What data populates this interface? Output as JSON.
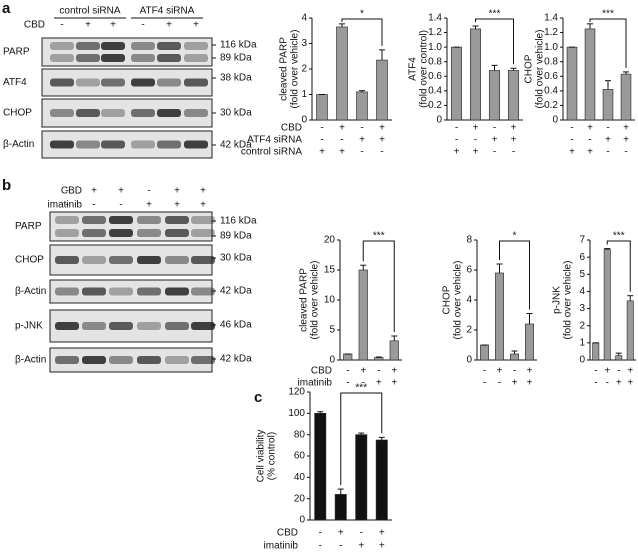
{
  "panel_labels": [
    "a",
    "b",
    "c"
  ],
  "blots": [
    {
      "groups": [
        "control siRNA",
        "ATF4 siRNA"
      ],
      "conditions": [
        {
          "name": "CBD",
          "signs": [
            "-",
            "+",
            "+",
            "-",
            "+",
            "+"
          ]
        }
      ],
      "rows": [
        {
          "name": "PARP",
          "markers": [
            "116 kDa",
            "89 kDa"
          ]
        },
        {
          "name": "ATF4",
          "markers": [
            "38 kDa"
          ]
        },
        {
          "name": "CHOP",
          "markers": [
            "30 kDa"
          ]
        },
        {
          "name": "β-Actin",
          "markers": [
            "42 kDa"
          ]
        }
      ]
    },
    {
      "groups": [],
      "conditions": [
        {
          "name": "CBD",
          "signs": [
            "-",
            "+",
            "+",
            "-",
            "+",
            "+"
          ]
        },
        {
          "name": "imatinib",
          "signs": [
            "-",
            "-",
            "-",
            "+",
            "+",
            "+"
          ]
        }
      ],
      "rows": [
        {
          "name": "PARP",
          "markers": [
            "116 kDa",
            "89 kDa"
          ]
        },
        {
          "name": "CHOP",
          "markers": [
            "30 kDa"
          ]
        },
        {
          "name": "β-Actin",
          "markers": [
            "42 kDa"
          ]
        },
        {
          "name": "p-JNK",
          "markers": [
            "46 kDa"
          ]
        },
        {
          "name": "β-Actin",
          "markers": [
            "42 kDa"
          ]
        }
      ]
    }
  ],
  "chart_data": [
    {
      "type": "bar",
      "y_label": [
        "cleaved PARP",
        "(fold over vehicle)"
      ],
      "color": "#9a9a9a",
      "values": [
        1,
        3.65,
        1.1,
        2.35
      ],
      "errors": [
        0,
        0.12,
        0.05,
        0.4
      ],
      "ylim": [
        0,
        4
      ],
      "yticks": [
        0,
        1,
        2,
        3,
        4
      ],
      "significance": {
        "label": "*",
        "between": [
          1,
          3
        ]
      },
      "conditions": [
        {
          "name": "CBD",
          "signs": [
            "-",
            "+",
            "-",
            "+"
          ]
        },
        {
          "name": "ATF4 siRNA",
          "signs": [
            "-",
            "-",
            "+",
            "+"
          ]
        },
        {
          "name": "control siRNA",
          "signs": [
            "+",
            "+",
            "-",
            "-"
          ]
        }
      ]
    },
    {
      "type": "bar",
      "y_label": [
        "ATF4",
        "(fold over control)"
      ],
      "color": "#9a9a9a",
      "values": [
        1,
        1.25,
        0.68,
        0.68
      ],
      "errors": [
        0,
        0.04,
        0.07,
        0.03
      ],
      "ylim": [
        0,
        1.4
      ],
      "yticks": [
        0,
        0.2,
        0.4,
        0.6,
        0.8,
        {
          "value": 1,
          "label": "1.0"
        },
        1.2,
        1.4
      ],
      "significance": {
        "label": "***",
        "between": [
          1,
          3
        ]
      },
      "conditions": [
        {
          "signs": [
            "-",
            "+",
            "-",
            "+"
          ]
        },
        {
          "signs": [
            "-",
            "-",
            "+",
            "+"
          ]
        },
        {
          "signs": [
            "+",
            "+",
            "-",
            "-"
          ]
        }
      ]
    },
    {
      "type": "bar",
      "y_label": [
        "CHOP",
        "(fold over vehicle)"
      ],
      "color": "#9a9a9a",
      "values": [
        1,
        1.25,
        0.42,
        0.63
      ],
      "errors": [
        0,
        0.07,
        0.12,
        0.03
      ],
      "ylim": [
        0,
        1.4
      ],
      "yticks": [
        0,
        0.2,
        0.4,
        0.6,
        0.8,
        {
          "value": 1,
          "label": "1.0"
        },
        1.2,
        1.4
      ],
      "significance": {
        "label": "***",
        "between": [
          1,
          3
        ]
      },
      "conditions": [
        {
          "signs": [
            "-",
            "+",
            "-",
            "+"
          ]
        },
        {
          "signs": [
            "-",
            "-",
            "+",
            "+"
          ]
        },
        {
          "signs": [
            "+",
            "+",
            "-",
            "-"
          ]
        }
      ]
    },
    {
      "type": "bar",
      "y_label": [
        "cleaved PARP",
        "(fold over vehicle)"
      ],
      "color": "#9a9a9a",
      "values": [
        1,
        15,
        0.4,
        3.2
      ],
      "errors": [
        0,
        0.8,
        0.1,
        0.8
      ],
      "ylim": [
        0,
        20
      ],
      "yticks": [
        0,
        5,
        10,
        15,
        20
      ],
      "significance": {
        "label": "***",
        "between": [
          1,
          3
        ]
      },
      "conditions": [
        {
          "name": "CBD",
          "signs": [
            "-",
            "+",
            "-",
            "+"
          ]
        },
        {
          "name": "imatinib",
          "signs": [
            "-",
            "-",
            "+",
            "+"
          ]
        }
      ]
    },
    {
      "type": "bar",
      "y_label": [
        "CHOP",
        "(fold over vehicle)"
      ],
      "color": "#9a9a9a",
      "values": [
        1,
        5.8,
        0.4,
        2.4
      ],
      "errors": [
        0,
        0.6,
        0.2,
        0.7
      ],
      "ylim": [
        0,
        8
      ],
      "yticks": [
        0,
        2,
        4,
        6,
        8
      ],
      "significance": {
        "label": "*",
        "between": [
          1,
          3
        ]
      },
      "conditions": [
        {
          "signs": [
            "-",
            "+",
            "-",
            "+"
          ]
        },
        {
          "signs": [
            "-",
            "-",
            "+",
            "+"
          ]
        }
      ]
    },
    {
      "type": "bar",
      "y_label": [
        "p-JNK",
        "(fold over vehicle)"
      ],
      "color": "#9a9a9a",
      "values": [
        1,
        6.45,
        0.25,
        3.45
      ],
      "errors": [
        0,
        0.05,
        0.15,
        0.3
      ],
      "ylim": [
        0,
        7
      ],
      "yticks": [
        0,
        1,
        2,
        3,
        4,
        5,
        6,
        7
      ],
      "significance": {
        "label": "***",
        "between": [
          1,
          3
        ]
      },
      "conditions": [
        {
          "signs": [
            "-",
            "+",
            "-",
            "+"
          ]
        },
        {
          "signs": [
            "-",
            "-",
            "+",
            "+"
          ]
        }
      ]
    },
    {
      "type": "bar",
      "y_label": [
        "Cell viability",
        "(% control)"
      ],
      "color": "#111111",
      "values": [
        100,
        24,
        80,
        75
      ],
      "errors": [
        1.5,
        5,
        1.5,
        2.5
      ],
      "ylim": [
        0,
        120
      ],
      "yticks": [
        0,
        20,
        40,
        60,
        80,
        100,
        120
      ],
      "significance": {
        "label": "***",
        "between": [
          1,
          3
        ]
      },
      "conditions": [
        {
          "name": "CBD",
          "signs": [
            "-",
            "+",
            "-",
            "+"
          ]
        },
        {
          "name": "imatinib",
          "signs": [
            "-",
            "-",
            "+",
            "+"
          ]
        }
      ]
    }
  ]
}
